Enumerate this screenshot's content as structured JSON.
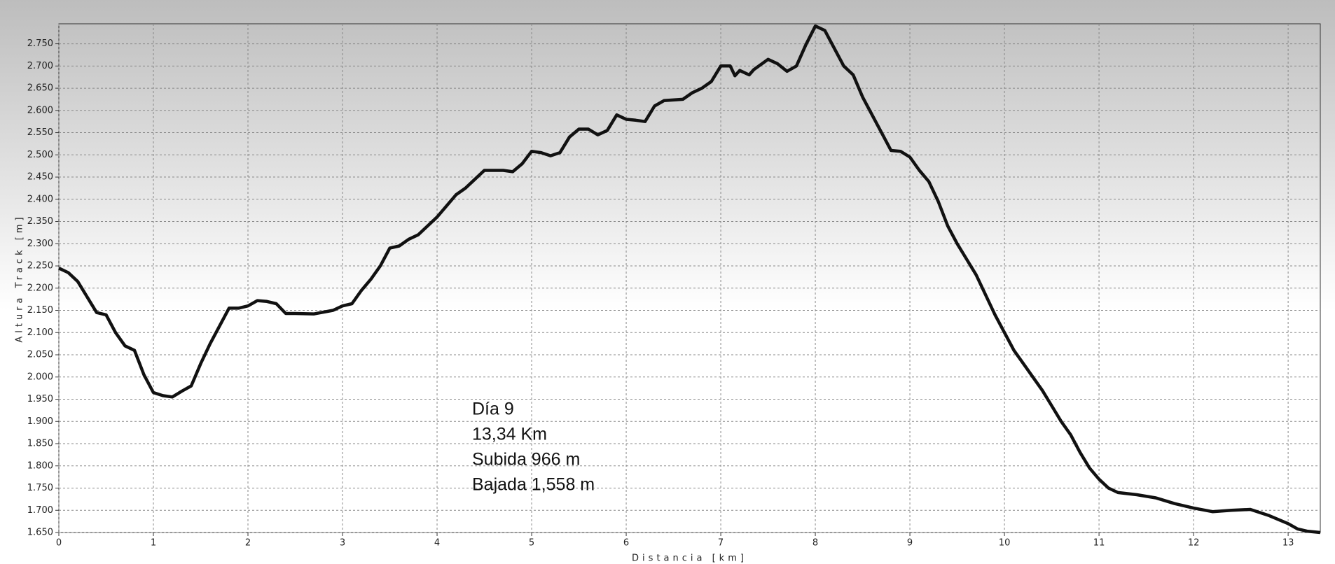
{
  "chart_data": {
    "type": "line",
    "ylabel": "Altura Track [m]",
    "xlabel": "Distancia [km]",
    "annotations": [
      "Día 9",
      "13,34 Km",
      "Subida 966 m",
      "Bajada 1,558 m"
    ],
    "color": "#111111",
    "grid": true,
    "xlim": [
      0,
      13.34
    ],
    "ylim": [
      1650,
      2795
    ],
    "xticks": [
      0,
      1,
      2,
      3,
      4,
      5,
      6,
      7,
      8,
      9,
      10,
      11,
      12,
      13
    ],
    "yticks": [
      {
        "value": 1650,
        "label": "1.650"
      },
      {
        "value": 1700,
        "label": "1.700"
      },
      {
        "value": 1750,
        "label": "1.750"
      },
      {
        "value": 1800,
        "label": "1.800"
      },
      {
        "value": 1850,
        "label": "1.850"
      },
      {
        "value": 1900,
        "label": "1.900"
      },
      {
        "value": 1950,
        "label": "1.950"
      },
      {
        "value": 2000,
        "label": "2.000"
      },
      {
        "value": 2050,
        "label": "2.050"
      },
      {
        "value": 2100,
        "label": "2.100"
      },
      {
        "value": 2150,
        "label": "2.150"
      },
      {
        "value": 2200,
        "label": "2.200"
      },
      {
        "value": 2250,
        "label": "2.250"
      },
      {
        "value": 2300,
        "label": "2.300"
      },
      {
        "value": 2350,
        "label": "2.350"
      },
      {
        "value": 2400,
        "label": "2.400"
      },
      {
        "value": 2450,
        "label": "2.450"
      },
      {
        "value": 2500,
        "label": "2.500"
      },
      {
        "value": 2550,
        "label": "2.550"
      },
      {
        "value": 2600,
        "label": "2.600"
      },
      {
        "value": 2650,
        "label": "2.650"
      },
      {
        "value": 2700,
        "label": "2.700"
      },
      {
        "value": 2750,
        "label": "2.750"
      }
    ],
    "x": [
      0,
      0.1,
      0.2,
      0.3,
      0.4,
      0.5,
      0.6,
      0.7,
      0.8,
      0.9,
      1.0,
      1.1,
      1.2,
      1.3,
      1.4,
      1.5,
      1.6,
      1.7,
      1.8,
      1.9,
      2.0,
      2.1,
      2.2,
      2.3,
      2.4,
      2.5,
      2.7,
      2.9,
      3.0,
      3.1,
      3.2,
      3.3,
      3.4,
      3.5,
      3.6,
      3.7,
      3.8,
      3.9,
      4.0,
      4.1,
      4.2,
      4.3,
      4.4,
      4.5,
      4.6,
      4.7,
      4.8,
      4.9,
      5.0,
      5.1,
      5.2,
      5.3,
      5.4,
      5.5,
      5.6,
      5.7,
      5.8,
      5.9,
      6.0,
      6.1,
      6.2,
      6.3,
      6.4,
      6.6,
      6.7,
      6.8,
      6.9,
      7.0,
      7.1,
      7.15,
      7.2,
      7.3,
      7.35,
      7.5,
      7.6,
      7.7,
      7.8,
      7.9,
      8.0,
      8.1,
      8.2,
      8.3,
      8.4,
      8.5,
      8.6,
      8.7,
      8.8,
      8.9,
      9.0,
      9.1,
      9.2,
      9.3,
      9.4,
      9.5,
      9.6,
      9.7,
      9.8,
      9.9,
      10.0,
      10.1,
      10.2,
      10.3,
      10.4,
      10.5,
      10.6,
      10.7,
      10.8,
      10.9,
      11.0,
      11.1,
      11.2,
      11.4,
      11.6,
      11.8,
      12.0,
      12.2,
      12.4,
      12.6,
      12.8,
      13.0,
      13.1,
      13.2,
      13.34
    ],
    "values": [
      2245,
      2235,
      2215,
      2180,
      2145,
      2140,
      2100,
      2070,
      2060,
      2005,
      1965,
      1958,
      1955,
      1968,
      1980,
      2030,
      2075,
      2115,
      2155,
      2155,
      2160,
      2172,
      2170,
      2165,
      2143,
      2143,
      2142,
      2150,
      2160,
      2165,
      2195,
      2220,
      2250,
      2290,
      2295,
      2310,
      2320,
      2340,
      2360,
      2385,
      2410,
      2425,
      2445,
      2465,
      2465,
      2465,
      2462,
      2480,
      2508,
      2505,
      2498,
      2505,
      2540,
      2558,
      2558,
      2545,
      2555,
      2590,
      2580,
      2578,
      2575,
      2610,
      2622,
      2625,
      2640,
      2650,
      2665,
      2700,
      2700,
      2678,
      2690,
      2680,
      2692,
      2715,
      2705,
      2688,
      2700,
      2748,
      2790,
      2780,
      2740,
      2700,
      2680,
      2630,
      2590,
      2550,
      2510,
      2508,
      2495,
      2465,
      2440,
      2395,
      2340,
      2300,
      2265,
      2230,
      2185,
      2140,
      2100,
      2060,
      2030,
      2000,
      1970,
      1935,
      1900,
      1870,
      1830,
      1795,
      1770,
      1750,
      1740,
      1735,
      1728,
      1715,
      1705,
      1697,
      1700,
      1702,
      1688,
      1670,
      1658,
      1653,
      1650
    ]
  }
}
